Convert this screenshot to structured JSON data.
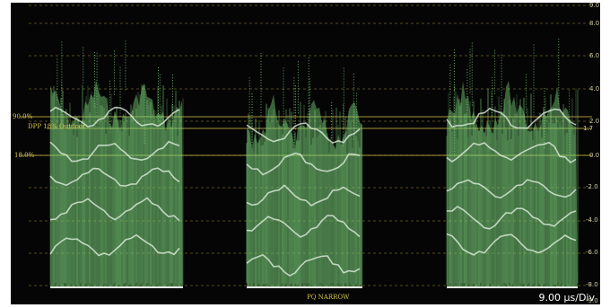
{
  "scope": {
    "mode_label": "PQ NARROW",
    "timebase_label": "9.00 µs/Div",
    "markers": {
      "upper_pct": "90.0%",
      "lower_pct": "18.0%",
      "dpp_label": "DPP 18% Outdoor",
      "dpp_value": "1.7"
    },
    "scale_labels": [
      "9.0",
      "8.0",
      "6.0",
      "4.0",
      "2.0",
      "0.0",
      "-2.0",
      "-4.0",
      "-6.0",
      "-8.0",
      "-9.0"
    ],
    "trace_color": "#7fd67f",
    "highlight_color": "#e8f4e8",
    "graticule_color": "#9a8a2c"
  }
}
